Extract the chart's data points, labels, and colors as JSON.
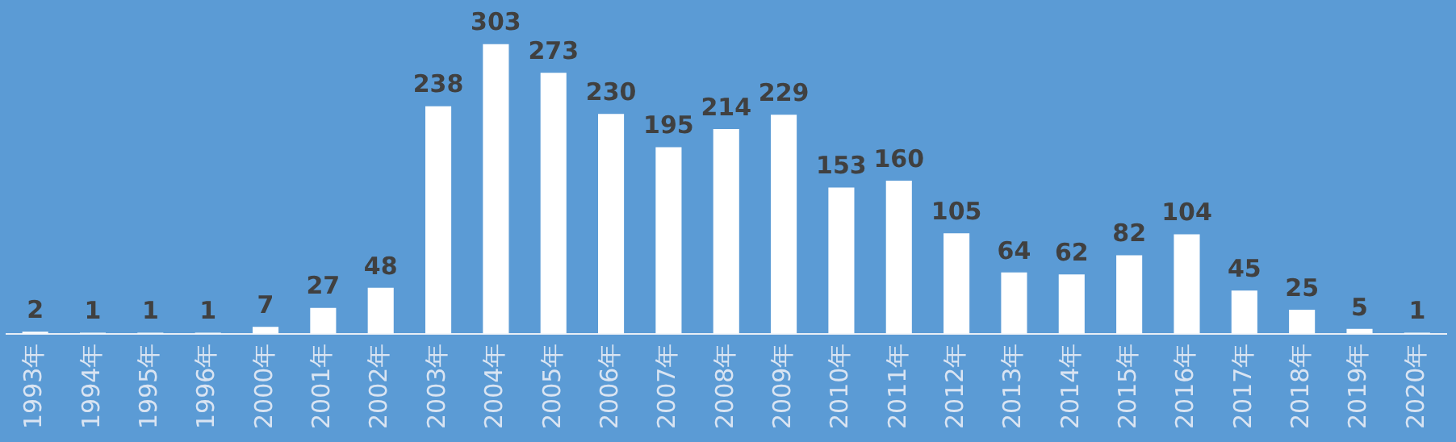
{
  "chart_data": {
    "type": "bar",
    "categories": [
      "1993年",
      "1994年",
      "1995年",
      "1996年",
      "2000年",
      "2001年",
      "2002年",
      "2003年",
      "2004年",
      "2005年",
      "2006年",
      "2007年",
      "2008年",
      "2009年",
      "2010年",
      "2011年",
      "2012年",
      "2013年",
      "2014年",
      "2015年",
      "2016年",
      "2017年",
      "2018年",
      "2019年",
      "2020年"
    ],
    "values": [
      2,
      1,
      1,
      1,
      7,
      27,
      48,
      238,
      303,
      273,
      230,
      195,
      214,
      229,
      153,
      160,
      105,
      64,
      62,
      82,
      104,
      45,
      25,
      5,
      1
    ],
    "color": "#ffffff",
    "data_labels": true,
    "tick_labels": "x",
    "grid": false,
    "legend": false
  }
}
